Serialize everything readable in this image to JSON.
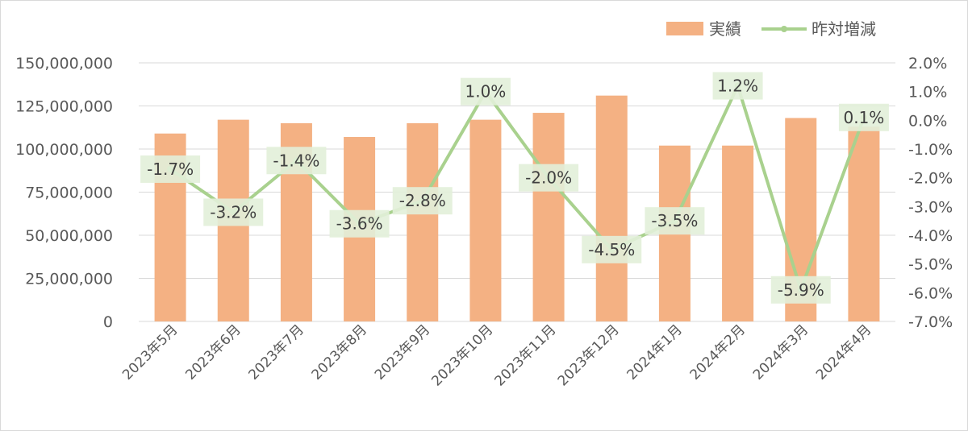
{
  "chart_data": {
    "type": "bar+line",
    "categories": [
      "2023年5月",
      "2023年6月",
      "2023年7月",
      "2023年8月",
      "2023年9月",
      "2023年10月",
      "2023年11月",
      "2023年12月",
      "2024年1月",
      "2024年2月",
      "2024年3月",
      "2024年4月"
    ],
    "series": [
      {
        "name": "実績",
        "type": "bar",
        "axis": "left",
        "color": "#f4b183",
        "values": [
          109000000,
          117000000,
          115000000,
          107000000,
          115000000,
          117000000,
          121000000,
          131000000,
          102000000,
          102000000,
          118000000,
          113000000
        ]
      },
      {
        "name": "昨対増減",
        "type": "line",
        "axis": "right",
        "color": "#a9d18e",
        "values": [
          -1.7,
          -3.2,
          -1.4,
          -3.6,
          -2.8,
          1.0,
          -2.0,
          -4.5,
          -3.5,
          1.2,
          -5.9,
          0.1
        ],
        "labels": [
          "-1.7%",
          "-3.2%",
          "-1.4%",
          "-3.6%",
          "-2.8%",
          "1.0%",
          "-2.0%",
          "-4.5%",
          "-3.5%",
          "1.2%",
          "-5.9%",
          "0.1%"
        ]
      }
    ],
    "y_left": {
      "lim": [
        0,
        150000000
      ],
      "ticks": [
        0,
        25000000,
        50000000,
        75000000,
        100000000,
        125000000,
        150000000
      ],
      "tick_labels": [
        "0",
        "25,000,000",
        "50,000,000",
        "75,000,000",
        "100,000,000",
        "125,000,000",
        "150,000,000"
      ]
    },
    "y_right": {
      "lim": [
        -7.0,
        2.0
      ],
      "ticks": [
        2.0,
        1.0,
        0.0,
        -1.0,
        -2.0,
        -3.0,
        -4.0,
        -5.0,
        -6.0,
        -7.0
      ],
      "tick_labels": [
        "2.0%",
        "1.0%",
        "0.0%",
        "-1.0%",
        "-2.0%",
        "-3.0%",
        "-4.0%",
        "-5.0%",
        "-6.0%",
        "-7.0%"
      ]
    },
    "grid": true,
    "legend_position": "top-right",
    "label_box_color": "#e2efd9"
  }
}
